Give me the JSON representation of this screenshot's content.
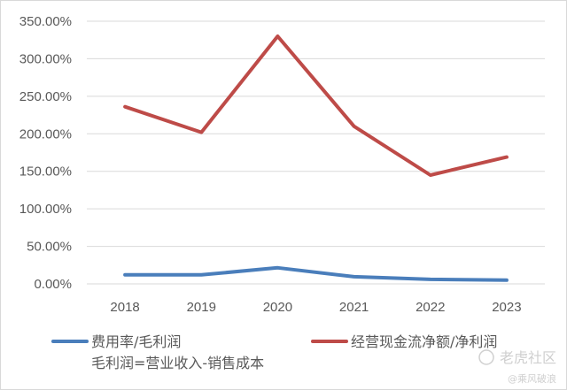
{
  "chart_data": {
    "type": "line",
    "categories": [
      "2018",
      "2019",
      "2020",
      "2021",
      "2022",
      "2023"
    ],
    "series": [
      {
        "name": "费用率/毛利润",
        "color": "#4a7ebb",
        "values": [
          12.0,
          12.0,
          21.5,
          9.5,
          6.0,
          5.0
        ]
      },
      {
        "name": "经营现金流净额/净利润",
        "color": "#be4b48",
        "values": [
          236.0,
          202.0,
          330.0,
          210.0,
          145.0,
          169.0
        ]
      }
    ],
    "ylim": [
      0,
      350
    ],
    "yticks": [
      "0.00%",
      "50.00%",
      "100.00%",
      "150.00%",
      "200.00%",
      "250.00%",
      "300.00%",
      "350.00%"
    ],
    "grid": true,
    "legend_position": "bottom",
    "annotation": "毛利润=营业收入-销售成本"
  },
  "watermark": {
    "brand": "老虎社区",
    "handle": "@乘风破浪"
  }
}
